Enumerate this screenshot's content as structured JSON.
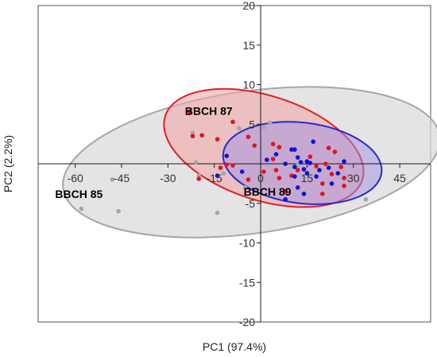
{
  "chart_data": {
    "type": "scatter",
    "title": "",
    "xlabel": "PC1 (97.4%)",
    "ylabel": "PC2 (2.2%)",
    "xlim": [
      -72,
      55
    ],
    "ylim": [
      -20,
      20
    ],
    "x_ticks": [
      -60,
      -45,
      -30,
      -15,
      0,
      15,
      30,
      45
    ],
    "y_ticks": [
      -20,
      -15,
      -10,
      -5,
      0,
      5,
      10,
      15,
      20
    ],
    "grid": false,
    "legend": "none",
    "group_labels": [
      {
        "text": "BBCH 87",
        "x": -24.5,
        "y": 6.2
      },
      {
        "text": "BBCH 85",
        "x": -66.5,
        "y": -4.3
      },
      {
        "text": "BBCH 89",
        "x": -5.5,
        "y": -4.0
      }
    ],
    "ellipses": [
      {
        "group": "BBCH 85",
        "cx": -3,
        "cy": 0.2,
        "rx": 61.5,
        "ry": 9.0,
        "angle": 8,
        "fill": "#d9d9d9",
        "stroke": "#a6a6a6",
        "fill_opacity": 0.7
      },
      {
        "group": "BBCH 87",
        "cx": 1,
        "cy": 2.0,
        "rx": 33.5,
        "ry": 6.6,
        "angle": -18,
        "fill": "#f2a8a8",
        "stroke": "#e0202a",
        "fill_opacity": 0.6
      },
      {
        "group": "BBCH 89",
        "cx": 13.5,
        "cy": 0.1,
        "rx": 25.8,
        "ry": 5.1,
        "angle": -7,
        "fill": "#9f8fe0",
        "stroke": "#2a2ad0",
        "fill_opacity": 0.5
      }
    ],
    "series": [
      {
        "name": "BBCH 85",
        "color": "#a6a6a6",
        "points": [
          [
            -48,
            -2
          ],
          [
            -58,
            -5.7
          ],
          [
            -46,
            -6
          ],
          [
            -22,
            3.9
          ],
          [
            -20,
            -1.5
          ],
          [
            -21,
            0.2
          ],
          [
            -14,
            -6.2
          ],
          [
            -12,
            -1.2
          ],
          [
            -7,
            4.5
          ],
          [
            -5,
            -3
          ],
          [
            12,
            -0.2
          ],
          [
            34,
            -4.5
          ],
          [
            3,
            5.2
          ],
          [
            1,
            4.6
          ]
        ]
      },
      {
        "name": "BBCH 87",
        "color": "#e0141e",
        "points": [
          [
            -23,
            6.6
          ],
          [
            -22,
            3.5
          ],
          [
            -19,
            3.6
          ],
          [
            -14,
            3.1
          ],
          [
            -9,
            5.3
          ],
          [
            -20,
            -1.9
          ],
          [
            -13,
            -0.5
          ],
          [
            -9,
            -0.2
          ],
          [
            -11,
            -0.1
          ],
          [
            -4,
            3.4
          ],
          [
            -2,
            2.3
          ],
          [
            1,
            -1.0
          ],
          [
            -4,
            -2.0
          ],
          [
            4,
            2.5
          ],
          [
            4,
            0.6
          ],
          [
            5,
            -0.8
          ],
          [
            6,
            -1.8
          ],
          [
            8,
            -3.5
          ],
          [
            10,
            -1.5
          ],
          [
            12,
            -0.8
          ],
          [
            16,
            0.9
          ],
          [
            18,
            -0.3
          ],
          [
            20,
            -2.5
          ],
          [
            21,
            0.0
          ],
          [
            23,
            -1.3
          ],
          [
            24,
            1.5
          ],
          [
            26,
            -0.4
          ],
          [
            27,
            -1.8
          ],
          [
            20,
            -3.8
          ],
          [
            27,
            -2.8
          ],
          [
            22,
            2.0
          ],
          [
            6,
            2.1
          ]
        ]
      },
      {
        "name": "BBCH 89",
        "color": "#1010d8",
        "points": [
          [
            -11,
            1.0
          ],
          [
            -14,
            -1.5
          ],
          [
            -6,
            -1.0
          ],
          [
            2,
            0.5
          ],
          [
            5,
            1.2
          ],
          [
            8,
            0.0
          ],
          [
            10,
            1.8
          ],
          [
            11,
            -0.4
          ],
          [
            11,
            -1.6
          ],
          [
            12,
            0.8
          ],
          [
            13,
            0.2
          ],
          [
            14,
            -0.7
          ],
          [
            15,
            0.3
          ],
          [
            15,
            -1.2
          ],
          [
            16,
            0.1
          ],
          [
            17,
            2.8
          ],
          [
            18,
            -1.6
          ],
          [
            19,
            -0.8
          ],
          [
            22,
            -0.5
          ],
          [
            23,
            -2.5
          ],
          [
            25,
            -1.2
          ],
          [
            27,
            0.3
          ],
          [
            14,
            -3.8
          ],
          [
            12,
            -3.0
          ],
          [
            8,
            -4.5
          ],
          [
            11,
            1.8
          ]
        ]
      }
    ],
    "colors": {
      "axis": "#1a1a1a",
      "frame": "#555555"
    }
  }
}
